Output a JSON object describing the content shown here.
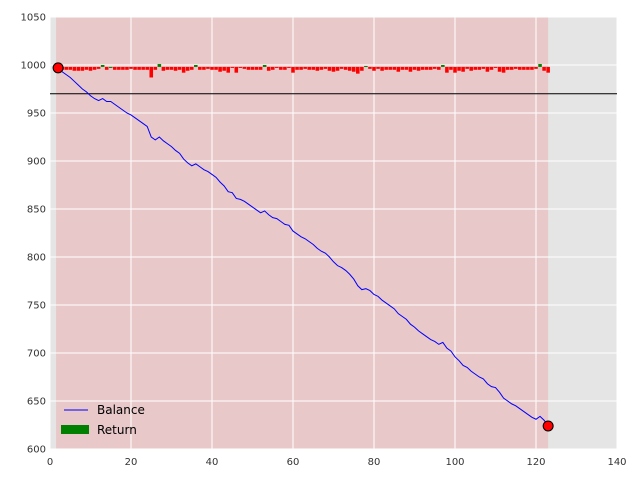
{
  "chart_data": {
    "type": "line",
    "title": "",
    "xlabel": "",
    "ylabel": "",
    "xlim": [
      0,
      140
    ],
    "ylim": [
      600,
      1050
    ],
    "xticks": [
      0,
      20,
      40,
      60,
      80,
      100,
      120,
      140
    ],
    "yticks": [
      600,
      650,
      700,
      750,
      800,
      850,
      900,
      950,
      1000,
      1050
    ],
    "grid": true,
    "shaded_region": {
      "x": [
        1.5,
        123
      ]
    },
    "reference_line_y": 970,
    "return_baseline": 998,
    "legend": {
      "placement": "lower-left",
      "entries": [
        "Balance",
        "Return"
      ]
    },
    "markers": [
      {
        "x": 2,
        "y": 997
      },
      {
        "x": 123,
        "y": 624
      }
    ],
    "series": [
      {
        "name": "Balance",
        "type": "line",
        "color": "#0000ff",
        "x": [
          2,
          3,
          4,
          5,
          6,
          7,
          8,
          9,
          10,
          11,
          12,
          13,
          14,
          15,
          16,
          17,
          18,
          19,
          20,
          21,
          22,
          23,
          24,
          25,
          26,
          27,
          28,
          29,
          30,
          31,
          32,
          33,
          34,
          35,
          36,
          37,
          38,
          39,
          40,
          41,
          42,
          43,
          44,
          45,
          46,
          47,
          48,
          49,
          50,
          51,
          52,
          53,
          54,
          55,
          56,
          57,
          58,
          59,
          60,
          61,
          62,
          63,
          64,
          65,
          66,
          67,
          68,
          69,
          70,
          71,
          72,
          73,
          74,
          75,
          76,
          77,
          78,
          79,
          80,
          81,
          82,
          83,
          84,
          85,
          86,
          87,
          88,
          89,
          90,
          91,
          92,
          93,
          94,
          95,
          96,
          97,
          98,
          99,
          100,
          101,
          102,
          103,
          104,
          105,
          106,
          107,
          108,
          109,
          110,
          111,
          112,
          113,
          114,
          115,
          116,
          117,
          118,
          119,
          120,
          121,
          122,
          123
        ],
        "values": [
          997,
          993,
          990,
          987,
          983,
          979,
          975,
          972,
          968,
          965,
          963,
          965,
          962,
          962,
          959,
          956,
          953,
          950,
          948,
          945,
          942,
          939,
          936,
          925,
          922,
          925,
          921,
          918,
          915,
          911,
          908,
          902,
          898,
          895,
          897,
          894,
          891,
          889,
          886,
          883,
          878,
          874,
          868,
          867,
          861,
          860,
          858,
          855,
          852,
          849,
          846,
          848,
          844,
          841,
          840,
          837,
          834,
          833,
          827,
          824,
          821,
          819,
          816,
          813,
          809,
          806,
          804,
          800,
          795,
          791,
          789,
          786,
          782,
          777,
          770,
          766,
          767,
          765,
          761,
          759,
          755,
          752,
          749,
          746,
          741,
          738,
          735,
          730,
          727,
          723,
          720,
          717,
          714,
          712,
          709,
          711,
          705,
          702,
          696,
          692,
          687,
          685,
          681,
          678,
          675,
          673,
          668,
          665,
          664,
          659,
          653,
          650,
          647,
          645,
          642,
          639,
          636,
          633,
          631,
          634,
          630,
          624
        ]
      },
      {
        "name": "Return",
        "type": "bar",
        "color": "#008000",
        "negative_color": "#ff0000",
        "x": [
          2,
          3,
          4,
          5,
          6,
          7,
          8,
          9,
          10,
          11,
          12,
          13,
          14,
          15,
          16,
          17,
          18,
          19,
          20,
          21,
          22,
          23,
          24,
          25,
          26,
          27,
          28,
          29,
          30,
          31,
          32,
          33,
          34,
          35,
          36,
          37,
          38,
          39,
          40,
          41,
          42,
          43,
          44,
          45,
          46,
          47,
          48,
          49,
          50,
          51,
          52,
          53,
          54,
          55,
          56,
          57,
          58,
          59,
          60,
          61,
          62,
          63,
          64,
          65,
          66,
          67,
          68,
          69,
          70,
          71,
          72,
          73,
          74,
          75,
          76,
          77,
          78,
          79,
          80,
          81,
          82,
          83,
          84,
          85,
          86,
          87,
          88,
          89,
          90,
          91,
          92,
          93,
          94,
          95,
          96,
          97,
          98,
          99,
          100,
          101,
          102,
          103,
          104,
          105,
          106,
          107,
          108,
          109,
          110,
          111,
          112,
          113,
          114,
          115,
          116,
          117,
          118,
          119,
          120,
          121,
          122,
          123
        ],
        "values": [
          -1,
          -3,
          -3,
          -3,
          -4,
          -4,
          -4,
          -3,
          -4,
          -3,
          -2,
          2,
          -3,
          0,
          -3,
          -3,
          -3,
          -3,
          -2,
          -3,
          -3,
          -3,
          -3,
          -11,
          -3,
          3,
          -4,
          -3,
          -3,
          -4,
          -3,
          -6,
          -4,
          -3,
          2,
          -3,
          -3,
          -2,
          -3,
          -3,
          -5,
          -4,
          -6,
          -1,
          -6,
          -1,
          -2,
          -3,
          -3,
          -3,
          -3,
          2,
          -4,
          -3,
          -1,
          -3,
          -3,
          -1,
          -6,
          -3,
          -3,
          -2,
          -3,
          -3,
          -4,
          -3,
          -2,
          -4,
          -5,
          -4,
          -2,
          -3,
          -4,
          -5,
          -7,
          -4,
          1,
          -2,
          -4,
          -2,
          -4,
          -3,
          -3,
          -3,
          -5,
          -3,
          -3,
          -5,
          -3,
          -4,
          -3,
          -3,
          -3,
          -2,
          -3,
          2,
          -6,
          -3,
          -6,
          -4,
          -5,
          -2,
          -4,
          -3,
          -3,
          -2,
          -5,
          -3,
          -1,
          -5,
          -6,
          -3,
          -3,
          -2,
          -3,
          -3,
          -3,
          -3,
          -2,
          3,
          -4,
          -6
        ]
      }
    ]
  }
}
